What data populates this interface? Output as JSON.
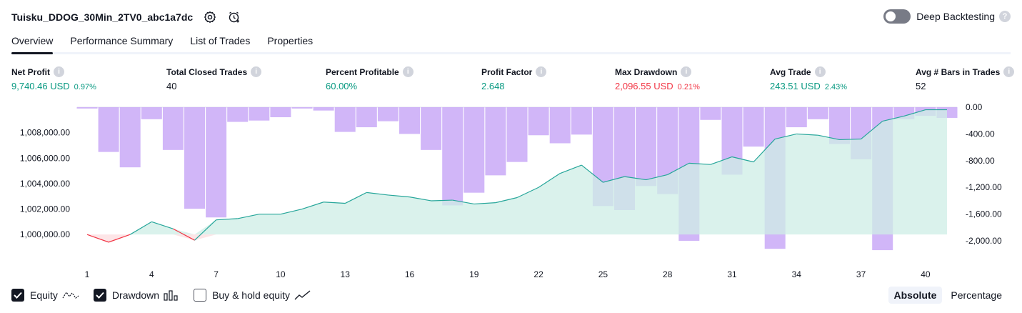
{
  "header": {
    "strategy_name": "Tuisku_DDOG_30Min_2TV0_abc1a7dc",
    "deep_backtesting_label": "Deep Backtesting"
  },
  "tabs": [
    {
      "label": "Overview",
      "active": true
    },
    {
      "label": "Performance Summary",
      "active": false
    },
    {
      "label": "List of Trades",
      "active": false
    },
    {
      "label": "Properties",
      "active": false
    }
  ],
  "metrics": [
    {
      "label": "Net Profit",
      "value": "9,740.46 USD",
      "sub": "0.97%",
      "tone": "pos"
    },
    {
      "label": "Total Closed Trades",
      "value": "40",
      "sub": "",
      "tone": "neutral"
    },
    {
      "label": "Percent Profitable",
      "value": "60.00%",
      "sub": "",
      "tone": "pos"
    },
    {
      "label": "Profit Factor",
      "value": "2.648",
      "sub": "",
      "tone": "pos"
    },
    {
      "label": "Max Drawdown",
      "value": "2,096.55 USD",
      "sub": "0.21%",
      "tone": "neg"
    },
    {
      "label": "Avg Trade",
      "value": "243.51 USD",
      "sub": "2.43%",
      "tone": "pos"
    },
    {
      "label": "Avg # Bars in Trades",
      "value": "52",
      "sub": "",
      "tone": "neutral"
    }
  ],
  "legend": {
    "equity_label": "Equity",
    "drawdown_label": "Drawdown",
    "buyhold_label": "Buy & hold equity"
  },
  "view_mode": {
    "absolute_label": "Absolute",
    "percentage_label": "Percentage"
  },
  "colors": {
    "equity_line": "#26a69a",
    "equity_loss_line": "#f23645",
    "equity_fill": "#cdeee6",
    "drawdown_bar": "#c9a9f7"
  },
  "chart_data": {
    "type": "area",
    "x_ticks": [
      "1",
      "4",
      "7",
      "10",
      "13",
      "16",
      "19",
      "22",
      "25",
      "28",
      "31",
      "34",
      "37",
      "40"
    ],
    "left_axis": {
      "labels": [
        "1,000,000.00",
        "1,002,000.00",
        "1,004,000.00",
        "1,006,000.00",
        "1,008,000.00"
      ],
      "ticks": [
        1000000,
        1002000,
        1004000,
        1006000,
        1008000
      ],
      "range": [
        999000,
        1010000
      ]
    },
    "right_axis": {
      "labels": [
        "0.00",
        "-400.00",
        "-800.00",
        "-1,200.00",
        "-1,600.00",
        "-2,000.00"
      ],
      "ticks": [
        0,
        -400,
        -800,
        -1200,
        -1600,
        -2000
      ],
      "range": [
        -2096.55,
        0
      ]
    },
    "series": [
      {
        "name": "Equity",
        "baseline": 1000000,
        "values": [
          1000000,
          999400,
          1000000,
          1001000,
          1000450,
          999550,
          1001150,
          1001250,
          1001600,
          1001600,
          1002000,
          1002550,
          1002450,
          1003300,
          1003100,
          1002950,
          1002650,
          1002700,
          1002400,
          1002500,
          1002900,
          1003700,
          1004800,
          1005450,
          1004100,
          1004550,
          1004300,
          1004700,
          1005600,
          1005500,
          1006100,
          1005700,
          1007500,
          1007900,
          1007800,
          1007450,
          1007500,
          1008900,
          1009300,
          1009800,
          1009800
        ]
      },
      {
        "name": "Drawdown",
        "values": [
          -20,
          -670,
          -900,
          -180,
          -640,
          -1520,
          -1650,
          -220,
          -200,
          -150,
          -20,
          -50,
          -370,
          -300,
          -210,
          -400,
          -640,
          -1470,
          -1280,
          -1020,
          -820,
          -420,
          -540,
          -410,
          -1480,
          -1540,
          -1180,
          -1300,
          -2000,
          -190,
          -1010,
          -590,
          -2120,
          -300,
          -180,
          -550,
          -780,
          -2140,
          -180,
          -130,
          -160
        ]
      }
    ]
  }
}
